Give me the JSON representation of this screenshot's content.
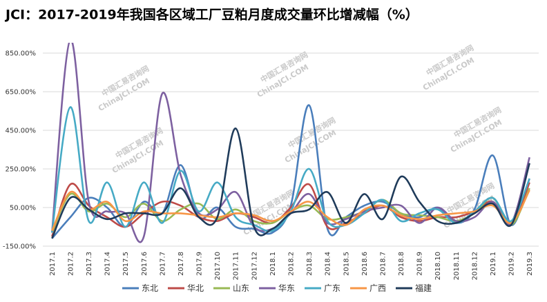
{
  "chart_data": {
    "type": "line",
    "title": "JCI：2017-2019年我国各区域工厂豆粕月度成交量环比增减幅（%）",
    "watermark": "中国汇易咨询网",
    "watermark_sub": "ChinaJCI.COM",
    "categories": [
      "2017.1",
      "2017.2",
      "2017.3",
      "2017.4",
      "2017.5",
      "2017.6",
      "2017.7",
      "2017.8",
      "2017.9",
      "2017.10",
      "2017.11",
      "2017.12",
      "2018.1",
      "2018.2",
      "2018.3",
      "2018.4",
      "2018.5",
      "2018.6",
      "2018.7",
      "2018.8",
      "2018.9",
      "2018.10",
      "2018.11",
      "2018.12",
      "2019.1",
      "2019.2",
      "2019.3"
    ],
    "ylim": [
      -150,
      900
    ],
    "yticks": [
      {
        "value": -150,
        "label": "-150.00%"
      },
      {
        "value": 50,
        "label": "50.00%"
      },
      {
        "value": 250,
        "label": "250.00%"
      },
      {
        "value": 450,
        "label": "450.00%"
      },
      {
        "value": 650,
        "label": "650.00%"
      },
      {
        "value": 850,
        "label": "850.00%"
      }
    ],
    "grid": true,
    "legend": "bottom",
    "series": [
      {
        "name": "东北",
        "color": "#4a7ebb",
        "values": [
          -110,
          0,
          100,
          50,
          -50,
          80,
          20,
          270,
          0,
          50,
          -50,
          -60,
          -80,
          60,
          580,
          -60,
          0,
          60,
          80,
          20,
          0,
          50,
          -30,
          40,
          320,
          -40,
          200
        ]
      },
      {
        "name": "华北",
        "color": "#be4b48",
        "values": [
          -100,
          170,
          60,
          0,
          -50,
          20,
          80,
          60,
          0,
          -20,
          20,
          0,
          -30,
          50,
          170,
          -50,
          -30,
          20,
          60,
          0,
          -20,
          0,
          0,
          30,
          80,
          -40,
          180
        ]
      },
      {
        "name": "山东",
        "color": "#98b954",
        "values": [
          -80,
          120,
          30,
          70,
          0,
          70,
          -20,
          40,
          70,
          -10,
          40,
          -20,
          -30,
          30,
          60,
          -10,
          0,
          30,
          90,
          20,
          10,
          0,
          -20,
          20,
          100,
          -40,
          150
        ]
      },
      {
        "name": "华东",
        "color": "#7d60a0",
        "values": [
          -80,
          920,
          80,
          30,
          20,
          -100,
          640,
          220,
          20,
          40,
          130,
          -50,
          -60,
          20,
          120,
          -30,
          -10,
          30,
          50,
          60,
          -30,
          50,
          -20,
          0,
          80,
          -30,
          310
        ]
      },
      {
        "name": "广东",
        "color": "#46aac5",
        "values": [
          -80,
          570,
          -20,
          180,
          -50,
          180,
          -30,
          240,
          30,
          180,
          0,
          -40,
          -70,
          30,
          250,
          -20,
          -40,
          20,
          90,
          -20,
          20,
          40,
          -30,
          30,
          100,
          -20,
          200
        ]
      },
      {
        "name": "广西",
        "color": "#f79646",
        "values": [
          -70,
          130,
          40,
          80,
          -20,
          30,
          20,
          20,
          10,
          0,
          20,
          10,
          -20,
          30,
          80,
          0,
          -40,
          40,
          60,
          10,
          -10,
          10,
          20,
          30,
          60,
          -30,
          140
        ]
      },
      {
        "name": "福建",
        "color": "#1f3b5a",
        "values": [
          -110,
          100,
          40,
          -10,
          20,
          20,
          20,
          150,
          0,
          0,
          460,
          -50,
          -60,
          20,
          40,
          130,
          -30,
          120,
          -10,
          210,
          80,
          -20,
          -30,
          20,
          70,
          -40,
          280
        ]
      }
    ]
  }
}
